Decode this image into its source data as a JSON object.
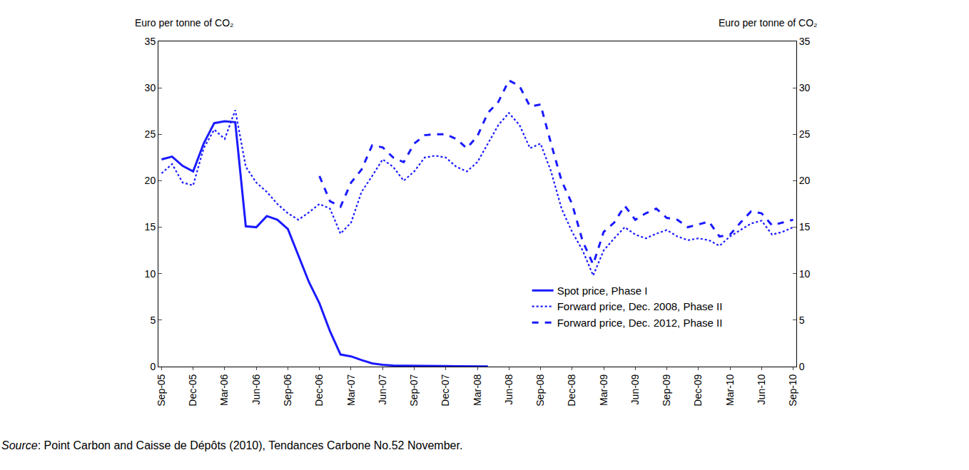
{
  "chart_data": {
    "type": "line",
    "y_label": "Euro per tonne of CO₂",
    "y2_label": "Euro per tonne of CO₂",
    "source": "Source: Point Carbon and Caisse de Dépôts (2010), Tendances Carbone No.52 November.",
    "categories": [
      "Sep-05",
      null,
      null,
      "Dec-05",
      null,
      null,
      "Mar-06",
      null,
      null,
      "Jun-06",
      null,
      null,
      "Sep-06",
      null,
      null,
      "Dec-06",
      null,
      null,
      "Mar-07",
      null,
      null,
      "Jun-07",
      null,
      null,
      "Sep-07",
      null,
      null,
      "Dec-07",
      null,
      null,
      "Mar-08",
      null,
      null,
      "Jun-08",
      null,
      null,
      "Sep-08",
      null,
      null,
      "Dec-08",
      null,
      null,
      "Mar-09",
      null,
      null,
      "Jun-09",
      null,
      null,
      "Sep-09",
      null,
      null,
      "Dec-09",
      null,
      null,
      "Mar-10",
      null,
      null,
      "Jun-10",
      null,
      null,
      "Sep-10"
    ],
    "series": [
      {
        "name": "Spot price, Phase I",
        "color": "#1a1aff",
        "line_style": "solid",
        "values": [
          22.3,
          22.6,
          21.6,
          21.0,
          24.0,
          26.2,
          26.4,
          26.3,
          15.1,
          15.0,
          16.2,
          15.8,
          14.8,
          12.0,
          9.1,
          6.8,
          3.8,
          1.3,
          1.1,
          0.7,
          0.35,
          0.2,
          0.12,
          0.1,
          0.1,
          0.08,
          0.07,
          0.05,
          0.04,
          0.03,
          0.02,
          0.02,
          null,
          null,
          null,
          null,
          null,
          null,
          null,
          null,
          null,
          null,
          null,
          null,
          null,
          null,
          null,
          null,
          null,
          null,
          null,
          null,
          null,
          null,
          null,
          null,
          null,
          null,
          null,
          null,
          null
        ]
      },
      {
        "name": "Forward price, Dec. 2008, Phase II",
        "color": "#1a1aff",
        "line_style": "dotted",
        "values": [
          20.8,
          21.8,
          19.8,
          19.5,
          23.5,
          25.5,
          24.5,
          27.6,
          21.5,
          19.8,
          18.8,
          17.5,
          16.5,
          15.8,
          16.6,
          17.5,
          17.0,
          14.3,
          15.5,
          18.8,
          20.5,
          22.3,
          21.5,
          20.0,
          21.0,
          22.5,
          22.7,
          22.5,
          21.5,
          21.0,
          22.0,
          24.0,
          26.0,
          27.3,
          26.0,
          23.5,
          24.0,
          21.0,
          17.0,
          14.5,
          12.5,
          9.8,
          12.5,
          13.8,
          15.0,
          14.2,
          13.8,
          14.3,
          14.7,
          14.0,
          13.6,
          13.8,
          13.6,
          13.0,
          14.0,
          14.7,
          15.4,
          15.7,
          14.2,
          14.5,
          15.0
        ]
      },
      {
        "name": "Forward price, Dec. 2012, Phase II",
        "color": "#1a1aff",
        "line_style": "dashed",
        "values": [
          null,
          null,
          null,
          null,
          null,
          null,
          null,
          null,
          null,
          null,
          null,
          null,
          null,
          null,
          null,
          20.5,
          17.8,
          17.2,
          19.8,
          21.2,
          23.8,
          23.6,
          22.5,
          22.0,
          24.0,
          24.9,
          25.0,
          25.0,
          24.5,
          23.5,
          24.8,
          27.3,
          28.5,
          30.8,
          30.2,
          28.0,
          28.2,
          24.0,
          20.0,
          17.5,
          13.5,
          11.0,
          14.5,
          15.5,
          17.3,
          15.8,
          16.5,
          17.0,
          16.0,
          15.8,
          15.0,
          15.3,
          15.6,
          14.0,
          14.2,
          15.5,
          16.7,
          16.5,
          15.2,
          15.5,
          15.8
        ]
      }
    ],
    "ylim": [
      0,
      35
    ],
    "yticks": [
      0,
      5,
      10,
      15,
      20,
      25,
      30,
      35
    ],
    "y2lim": [
      0,
      35
    ],
    "y2ticks": [
      0,
      5,
      10,
      15,
      20,
      25,
      30,
      35
    ],
    "grid": false,
    "legend": "lower right"
  }
}
